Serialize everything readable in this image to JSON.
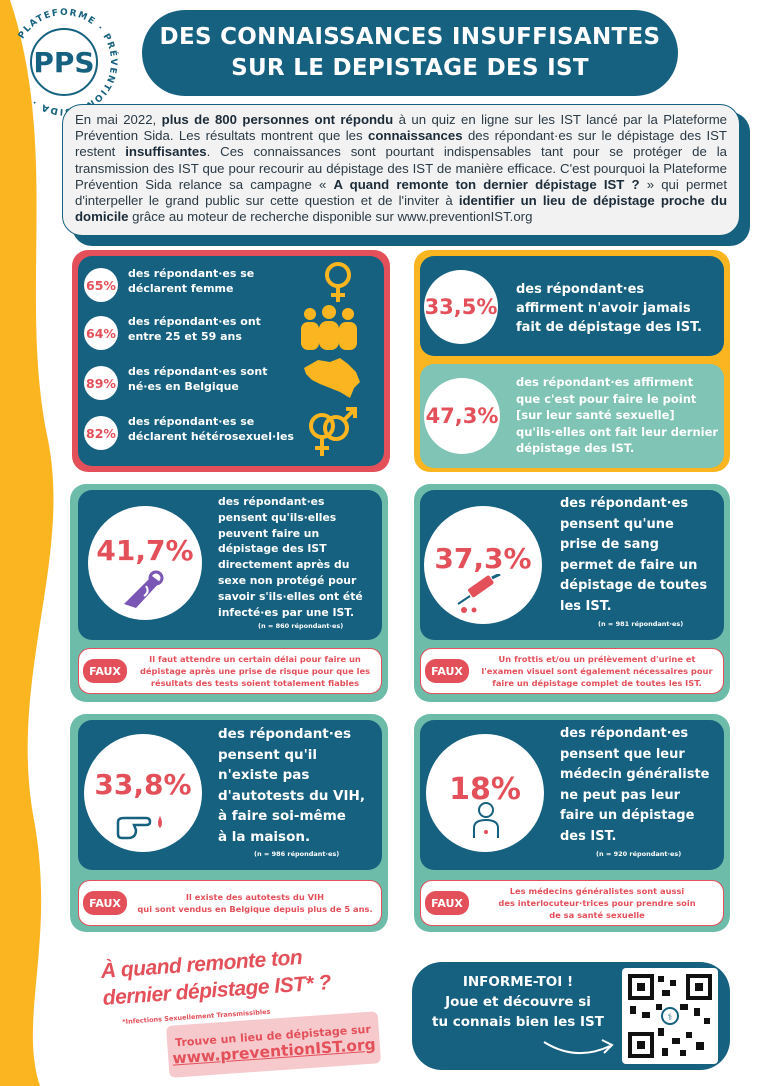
{
  "colors": {
    "teal": "#16617f",
    "coral": "#e4505a",
    "yellow": "#fbb520",
    "mint": "#6dbba9",
    "light_mint": "#7fc4b4"
  },
  "header": {
    "logo_letters": "PPS",
    "logo_ring_text": "PLATEFORME · PRÉVENTION · SIDA ·",
    "title_line1": "DES CONNAISSANCES INSUFFISANTES",
    "title_line2": "SUR LE DEPISTAGE DES IST"
  },
  "intro": {
    "p1": "En mai 2022, ",
    "b1": "plus de 800 personnes ont répondu",
    "p2": " à un quiz en ligne sur les IST lancé par la Plateforme Prévention Sida. Les résultats montrent que les ",
    "b2": "connaissances",
    "p3": " des répondant·es sur le dépistage des IST restent ",
    "b3": "insuffisantes",
    "p4": ". Ces connaissances sont pourtant indispensables tant pour se protéger de la transmission des IST que pour recourir au dépistage des IST de manière efficace. C'est pourquoi la Plateforme Prévention Sida relance sa campagne « ",
    "b4": "A quand remonte ton dernier dépistage IST ?",
    "p5": " » qui permet d'interpeller le grand public sur cette question et de l'inviter à ",
    "b5": "identifier un lieu de dépistage proche du domicile",
    "p6": " grâce au moteur de recherche disponible sur www.preventionIST.org"
  },
  "demographics": [
    {
      "pct": "65%",
      "line1": "des répondant·es se",
      "line2": "déclarent femme",
      "icon": "female-symbol-icon"
    },
    {
      "pct": "64%",
      "line1": "des répondant·es ont",
      "line2": "entre 25 et 59 ans",
      "icon": "people-group-icon"
    },
    {
      "pct": "89%",
      "line1": "des répondant·es sont",
      "line2": "né·es en Belgique",
      "icon": "belgium-map-icon"
    },
    {
      "pct": "82%",
      "line1": "des répondant·es se",
      "line2": "déclarent hétérosexuel·les",
      "icon": "hetero-symbol-icon"
    }
  ],
  "stat_never": {
    "pct": "33,5%",
    "lines": [
      "des répondant·es",
      "affirment n'avoir jamais",
      "fait de  dépistage des IST."
    ]
  },
  "stat_point": {
    "pct": "47,3%",
    "lines": [
      "des répondant·es affirment",
      "que c'est pour faire le point",
      "[sur leur santé sexuelle]",
      "qu'ils·elles ont  fait leur dernier",
      "dépistage des IST."
    ]
  },
  "card_immediate": {
    "pct": "41,7%",
    "lines": [
      "des répondant·es",
      "pensent qu'ils·elles",
      "peuvent faire un",
      "dépistage des IST",
      "directement après du",
      "sexe non protégé pour",
      "savoir s'ils·elles ont été",
      "infecté·es par une IST."
    ],
    "n": "(n = 860 répondant·es)",
    "icon": "condom-icon",
    "faux_label": "FAUX",
    "faux_lines": [
      "Il faut attendre un certain délai pour faire un",
      "dépistage  après une prise de risque pour que les",
      "résultats des tests soient totalement fiables"
    ]
  },
  "card_blood": {
    "pct": "37,3%",
    "lines": [
      "des répondant·es",
      "pensent qu'une",
      "prise de sang",
      "permet de faire un",
      "dépistage de toutes",
      "les IST."
    ],
    "n": "(n = 981 répondant·es)",
    "icon": "syringe-icon",
    "faux_label": "FAUX",
    "faux_lines": [
      "Un frottis et/ou un prélèvement d'urine et",
      "l'examen visuel sont également nécessaires pour",
      "faire un dépistage complet de toutes les IST."
    ]
  },
  "card_selftest": {
    "pct": "33,8%",
    "lines": [
      "des répondant·es",
      "pensent  qu'il",
      "n'existe pas",
      "d'autotests du VIH,",
      "à faire soi-même",
      "à la maison."
    ],
    "n": "(n = 986 répondant·es)",
    "icon": "finger-drop-icon",
    "faux_label": "FAUX",
    "faux_lines": [
      "Il existe des autotests du VIH",
      "qui sont vendus en Belgique depuis plus de 5 ans."
    ]
  },
  "card_doctor": {
    "pct": "18%",
    "lines": [
      "des répondant·es",
      "pensent que leur",
      "médecin généraliste",
      "ne peut pas leur",
      "faire un dépistage",
      "des IST."
    ],
    "n": "(n = 920 répondant·es)",
    "icon": "doctor-icon",
    "faux_label": "FAUX",
    "faux_lines": [
      "Les médecins généralistes sont aussi",
      "des interlocuteur·trices pour prendre soin",
      "de sa santé sexuelle"
    ]
  },
  "footer": {
    "slogan_line1": "À quand remonte ton",
    "slogan_line2": "dernier dépistage IST* ?",
    "footnote": "*Infections Sexuellement Transmissibles",
    "site_label": "Trouve un lieu de dépistage sur",
    "site_link": "www.preventionIST.org",
    "inform_line1": "INFORME-TOI !",
    "inform_line2": "Joue et découvre si",
    "inform_line3": "tu connais bien les IST",
    "qr_icon": "qr-code-icon"
  }
}
